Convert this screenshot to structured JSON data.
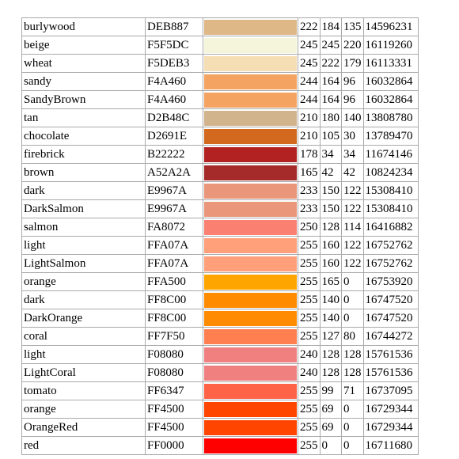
{
  "rows": [
    {
      "name": "burlywood",
      "hex": "DEB887",
      "color": "#DEB887",
      "r": "222",
      "g": "184",
      "b": "135",
      "decimal": "14596231"
    },
    {
      "name": "beige",
      "hex": "F5F5DC",
      "color": "#F5F5DC",
      "r": "245",
      "g": "245",
      "b": "220",
      "decimal": "16119260"
    },
    {
      "name": "wheat",
      "hex": "F5DEB3",
      "color": "#F5DEB3",
      "r": "245",
      "g": "222",
      "b": "179",
      "decimal": "16113331"
    },
    {
      "name": "sandy",
      "hex": "F4A460",
      "color": "#F4A460",
      "r": "244",
      "g": "164",
      "b": "96",
      "decimal": "16032864"
    },
    {
      "name": "SandyBrown",
      "hex": "F4A460",
      "color": "#F4A460",
      "r": "244",
      "g": "164",
      "b": "96",
      "decimal": "16032864"
    },
    {
      "name": "tan",
      "hex": "D2B48C",
      "color": "#D2B48C",
      "r": "210",
      "g": "180",
      "b": "140",
      "decimal": "13808780"
    },
    {
      "name": "chocolate",
      "hex": "D2691E",
      "color": "#D2691E",
      "r": "210",
      "g": "105",
      "b": "30",
      "decimal": "13789470"
    },
    {
      "name": "firebrick",
      "hex": "B22222",
      "color": "#B22222",
      "r": "178",
      "g": "34",
      "b": "34",
      "decimal": "11674146"
    },
    {
      "name": "brown",
      "hex": "A52A2A",
      "color": "#A52A2A",
      "r": "165",
      "g": "42",
      "b": "42",
      "decimal": "10824234"
    },
    {
      "name": "dark",
      "hex": "E9967A",
      "color": "#E9967A",
      "r": "233",
      "g": "150",
      "b": "122",
      "decimal": "15308410"
    },
    {
      "name": "DarkSalmon",
      "hex": "E9967A",
      "color": "#E9967A",
      "r": "233",
      "g": "150",
      "b": "122",
      "decimal": "15308410"
    },
    {
      "name": "salmon",
      "hex": "FA8072",
      "color": "#FA8072",
      "r": "250",
      "g": "128",
      "b": "114",
      "decimal": "16416882"
    },
    {
      "name": "light",
      "hex": "FFA07A",
      "color": "#FFA07A",
      "r": "255",
      "g": "160",
      "b": "122",
      "decimal": "16752762"
    },
    {
      "name": "LightSalmon",
      "hex": "FFA07A",
      "color": "#FFA07A",
      "r": "255",
      "g": "160",
      "b": "122",
      "decimal": "16752762"
    },
    {
      "name": "orange",
      "hex": "FFA500",
      "color": "#FFA500",
      "r": "255",
      "g": "165",
      "b": "0",
      "decimal": "16753920"
    },
    {
      "name": "dark",
      "hex": "FF8C00",
      "color": "#FF8C00",
      "r": "255",
      "g": "140",
      "b": "0",
      "decimal": "16747520"
    },
    {
      "name": "DarkOrange",
      "hex": "FF8C00",
      "color": "#FF8C00",
      "r": "255",
      "g": "140",
      "b": "0",
      "decimal": "16747520"
    },
    {
      "name": "coral",
      "hex": "FF7F50",
      "color": "#FF7F50",
      "r": "255",
      "g": "127",
      "b": "80",
      "decimal": "16744272"
    },
    {
      "name": "light",
      "hex": "F08080",
      "color": "#F08080",
      "r": "240",
      "g": "128",
      "b": "128",
      "decimal": "15761536"
    },
    {
      "name": "LightCoral",
      "hex": "F08080",
      "color": "#F08080",
      "r": "240",
      "g": "128",
      "b": "128",
      "decimal": "15761536"
    },
    {
      "name": "tomato",
      "hex": "FF6347",
      "color": "#FF6347",
      "r": "255",
      "g": "99",
      "b": "71",
      "decimal": "16737095"
    },
    {
      "name": "orange",
      "hex": "FF4500",
      "color": "#FF4500",
      "r": "255",
      "g": "69",
      "b": "0",
      "decimal": "16729344"
    },
    {
      "name": "OrangeRed",
      "hex": "FF4500",
      "color": "#FF4500",
      "r": "255",
      "g": "69",
      "b": "0",
      "decimal": "16729344"
    },
    {
      "name": "red",
      "hex": "FF0000",
      "color": "#FF0000",
      "r": "255",
      "g": "0",
      "b": "0",
      "decimal": "16711680"
    }
  ]
}
